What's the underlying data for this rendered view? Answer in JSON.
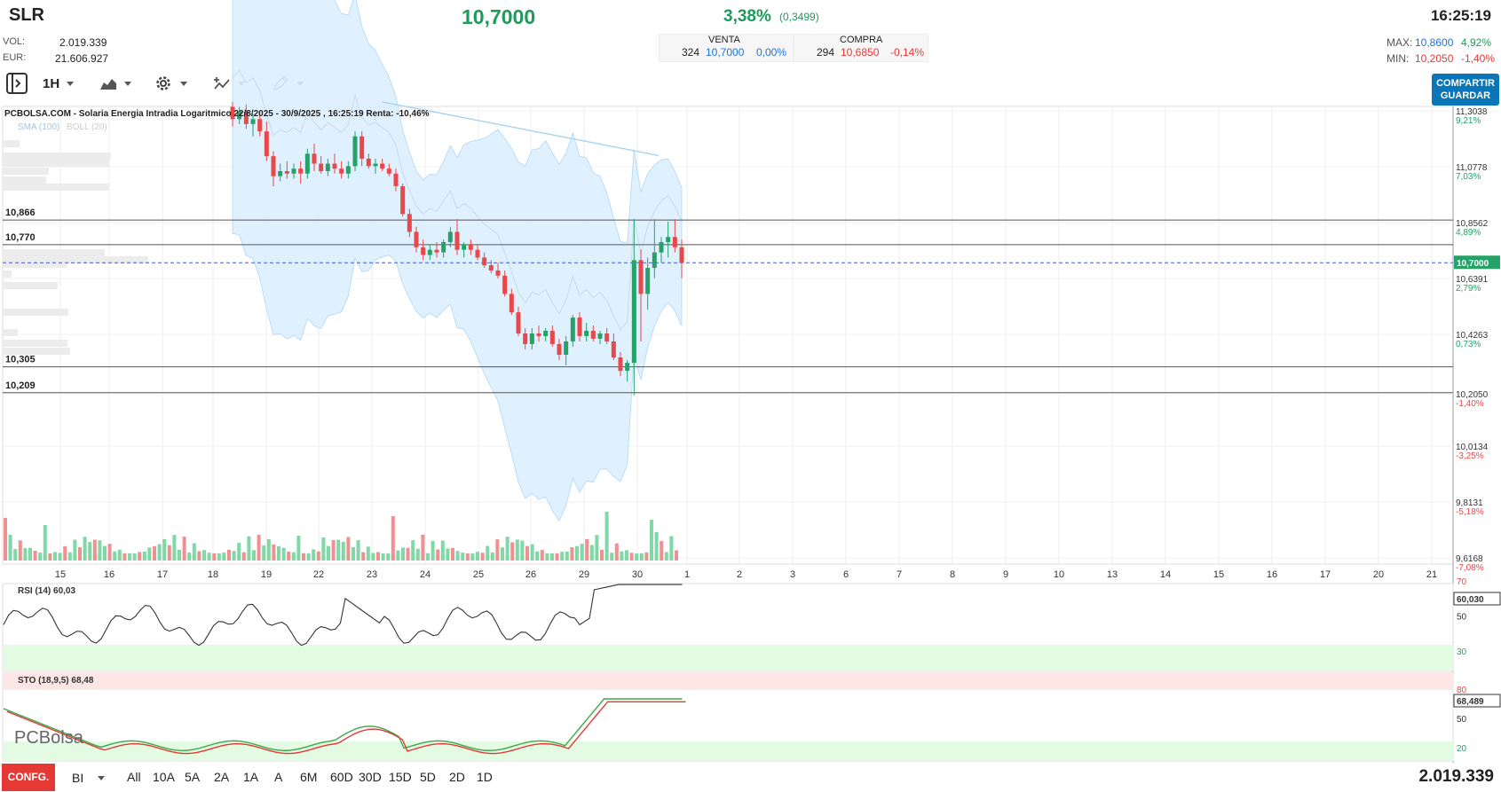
{
  "header": {
    "ticker": "SLR",
    "price": "10,7000",
    "change_pct": "3,38%",
    "change_abs": "(0,3499)",
    "time": "16:25:19",
    "vol_label": "VOL:",
    "vol_value": "2.019.339",
    "eur_label": "EUR:",
    "eur_value": "21.606.927",
    "venta_label": "VENTA",
    "venta_qty": "324",
    "venta_price": "10,7000",
    "venta_pct": "0,00%",
    "compra_label": "COMPRA",
    "compra_qty": "294",
    "compra_price": "10,6850",
    "compra_pct": "-0,14%",
    "max_label": "MAX:",
    "max_value": "10,8600",
    "max_pct": "4,92%",
    "min_label": "MIN:",
    "min_value": "10,2050",
    "min_pct": "-1,40%"
  },
  "toolbar": {
    "interval": "1H",
    "share_line1": "COMPARTIR",
    "share_line2": "GUARDAR"
  },
  "footer": {
    "config_label": "CONFG.",
    "bi_label": "BI",
    "timeframes": [
      "All",
      "10A",
      "5A",
      "2A",
      "1A",
      "A",
      "6M",
      "60D",
      "30D",
      "15D",
      "5D",
      "2D",
      "1D"
    ],
    "volume_total": "2.019.339"
  },
  "colors": {
    "up": "#26a269",
    "down": "#e8484a",
    "band": "#dcefff",
    "accent": "#0a76b7"
  },
  "chart_data": {
    "type": "candlestick",
    "title": "PCBOLSA.COM - Solaria Energia Intradia Logaritmico 22/8/2025 - 30/9/2025 , 16:25:19 Renta: -10,46%",
    "scale": "log",
    "legend": [
      "SMA (100)",
      "BOLL (20)"
    ],
    "x_ticks": [
      "15",
      "16",
      "17",
      "18",
      "19",
      "22",
      "23",
      "24",
      "25",
      "26",
      "29",
      "30",
      "1",
      "2",
      "3",
      "6",
      "7",
      "8",
      "9",
      "10",
      "13",
      "14",
      "15",
      "16",
      "17",
      "20",
      "21"
    ],
    "y_axis_labels": [
      {
        "price": "11,3038",
        "pct": "9,21%"
      },
      {
        "price": "11,0778",
        "pct": "7,03%"
      },
      {
        "price": "10,8562",
        "pct": "4,89%"
      },
      {
        "price": "10,6391",
        "pct": "2,79%"
      },
      {
        "price": "10,4263",
        "pct": "0,73%"
      },
      {
        "price": "10,2050",
        "pct": "-1,40%"
      },
      {
        "price": "10,0134",
        "pct": "-3,25%"
      },
      {
        "price": "9,8131",
        "pct": "-5,18%"
      },
      {
        "price": "9,6168",
        "pct": "-7,08%"
      }
    ],
    "current_price_label": "10,7000",
    "current_price": 10.7,
    "horizontal_levels": [
      {
        "label": "10,866",
        "value": 10.866
      },
      {
        "label": "10,770",
        "value": 10.77
      },
      {
        "label": "10,305",
        "value": 10.305
      },
      {
        "label": "10,209",
        "value": 10.209
      }
    ],
    "candles": [
      {
        "o": 11.32,
        "h": 11.34,
        "l": 11.24,
        "c": 11.27
      },
      {
        "o": 11.27,
        "h": 11.32,
        "l": 11.25,
        "c": 11.3
      },
      {
        "o": 11.3,
        "h": 11.33,
        "l": 11.23,
        "c": 11.25
      },
      {
        "o": 11.25,
        "h": 11.29,
        "l": 11.2,
        "c": 11.27
      },
      {
        "o": 11.27,
        "h": 11.3,
        "l": 11.2,
        "c": 11.22
      },
      {
        "o": 11.22,
        "h": 11.26,
        "l": 11.1,
        "c": 11.12
      },
      {
        "o": 11.12,
        "h": 11.14,
        "l": 11.0,
        "c": 11.04
      },
      {
        "o": 11.04,
        "h": 11.09,
        "l": 11.02,
        "c": 11.06
      },
      {
        "o": 11.06,
        "h": 11.1,
        "l": 11.03,
        "c": 11.05
      },
      {
        "o": 11.05,
        "h": 11.09,
        "l": 11.03,
        "c": 11.07
      },
      {
        "o": 11.07,
        "h": 11.1,
        "l": 11.01,
        "c": 11.05
      },
      {
        "o": 11.05,
        "h": 11.15,
        "l": 11.03,
        "c": 11.13
      },
      {
        "o": 11.13,
        "h": 11.17,
        "l": 11.06,
        "c": 11.09
      },
      {
        "o": 11.09,
        "h": 11.12,
        "l": 11.05,
        "c": 11.06
      },
      {
        "o": 11.06,
        "h": 11.11,
        "l": 11.04,
        "c": 11.09
      },
      {
        "o": 11.09,
        "h": 11.13,
        "l": 11.05,
        "c": 11.07
      },
      {
        "o": 11.07,
        "h": 11.1,
        "l": 11.03,
        "c": 11.05
      },
      {
        "o": 11.05,
        "h": 11.1,
        "l": 11.03,
        "c": 11.08
      },
      {
        "o": 11.08,
        "h": 11.22,
        "l": 11.06,
        "c": 11.2
      },
      {
        "o": 11.2,
        "h": 11.22,
        "l": 11.08,
        "c": 11.11
      },
      {
        "o": 11.11,
        "h": 11.13,
        "l": 11.07,
        "c": 11.08
      },
      {
        "o": 11.08,
        "h": 11.11,
        "l": 11.05,
        "c": 11.09
      },
      {
        "o": 11.09,
        "h": 11.11,
        "l": 11.06,
        "c": 11.07
      },
      {
        "o": 11.07,
        "h": 11.09,
        "l": 11.04,
        "c": 11.05
      },
      {
        "o": 11.05,
        "h": 11.07,
        "l": 10.98,
        "c": 11.0
      },
      {
        "o": 11.0,
        "h": 11.01,
        "l": 10.88,
        "c": 10.89
      },
      {
        "o": 10.89,
        "h": 10.91,
        "l": 10.8,
        "c": 10.82
      },
      {
        "o": 10.82,
        "h": 10.84,
        "l": 10.74,
        "c": 10.76
      },
      {
        "o": 10.76,
        "h": 10.79,
        "l": 10.71,
        "c": 10.73
      },
      {
        "o": 10.73,
        "h": 10.77,
        "l": 10.71,
        "c": 10.75
      },
      {
        "o": 10.75,
        "h": 10.78,
        "l": 10.72,
        "c": 10.74
      },
      {
        "o": 10.74,
        "h": 10.79,
        "l": 10.72,
        "c": 10.78
      },
      {
        "o": 10.78,
        "h": 10.84,
        "l": 10.76,
        "c": 10.82
      },
      {
        "o": 10.82,
        "h": 10.87,
        "l": 10.73,
        "c": 10.75
      },
      {
        "o": 10.75,
        "h": 10.78,
        "l": 10.72,
        "c": 10.77
      },
      {
        "o": 10.77,
        "h": 10.79,
        "l": 10.73,
        "c": 10.75
      },
      {
        "o": 10.75,
        "h": 10.77,
        "l": 10.71,
        "c": 10.72
      },
      {
        "o": 10.72,
        "h": 10.74,
        "l": 10.68,
        "c": 10.69
      },
      {
        "o": 10.69,
        "h": 10.71,
        "l": 10.66,
        "c": 10.67
      },
      {
        "o": 10.67,
        "h": 10.7,
        "l": 10.64,
        "c": 10.65
      },
      {
        "o": 10.65,
        "h": 10.67,
        "l": 10.57,
        "c": 10.58
      },
      {
        "o": 10.58,
        "h": 10.6,
        "l": 10.5,
        "c": 10.51
      },
      {
        "o": 10.51,
        "h": 10.53,
        "l": 10.42,
        "c": 10.43
      },
      {
        "o": 10.43,
        "h": 10.45,
        "l": 10.37,
        "c": 10.39
      },
      {
        "o": 10.39,
        "h": 10.45,
        "l": 10.37,
        "c": 10.43
      },
      {
        "o": 10.43,
        "h": 10.46,
        "l": 10.4,
        "c": 10.42
      },
      {
        "o": 10.42,
        "h": 10.45,
        "l": 10.4,
        "c": 10.44
      },
      {
        "o": 10.44,
        "h": 10.46,
        "l": 10.38,
        "c": 10.39
      },
      {
        "o": 10.39,
        "h": 10.41,
        "l": 10.33,
        "c": 10.35
      },
      {
        "o": 10.35,
        "h": 10.42,
        "l": 10.31,
        "c": 10.4
      },
      {
        "o": 10.4,
        "h": 10.5,
        "l": 10.38,
        "c": 10.49
      },
      {
        "o": 10.49,
        "h": 10.51,
        "l": 10.4,
        "c": 10.42
      },
      {
        "o": 10.42,
        "h": 10.47,
        "l": 10.4,
        "c": 10.44
      },
      {
        "o": 10.44,
        "h": 10.46,
        "l": 10.4,
        "c": 10.41
      },
      {
        "o": 10.41,
        "h": 10.44,
        "l": 10.39,
        "c": 10.43
      },
      {
        "o": 10.43,
        "h": 10.45,
        "l": 10.39,
        "c": 10.4
      },
      {
        "o": 10.4,
        "h": 10.43,
        "l": 10.33,
        "c": 10.34
      },
      {
        "o": 10.34,
        "h": 10.36,
        "l": 10.27,
        "c": 10.29
      },
      {
        "o": 10.29,
        "h": 10.33,
        "l": 10.25,
        "c": 10.32
      },
      {
        "o": 10.32,
        "h": 10.87,
        "l": 10.2,
        "c": 10.71
      },
      {
        "o": 10.71,
        "h": 10.75,
        "l": 10.4,
        "c": 10.58
      },
      {
        "o": 10.58,
        "h": 10.72,
        "l": 10.52,
        "c": 10.68
      },
      {
        "o": 10.68,
        "h": 10.87,
        "l": 10.64,
        "c": 10.74
      },
      {
        "o": 10.74,
        "h": 10.8,
        "l": 10.7,
        "c": 10.78
      },
      {
        "o": 10.78,
        "h": 10.86,
        "l": 10.72,
        "c": 10.8
      },
      {
        "o": 10.8,
        "h": 10.87,
        "l": 10.74,
        "c": 10.76
      },
      {
        "o": 10.76,
        "h": 10.79,
        "l": 10.64,
        "c": 10.7
      }
    ],
    "indicators": {
      "rsi": {
        "label": "RSI (14)",
        "value": "60,03",
        "axis_value": "60,030",
        "levels": [
          "70",
          "50",
          "30"
        ]
      },
      "sto": {
        "label": "STO (18,9,5)",
        "value": "68,48",
        "axis_value": "68,489",
        "levels": [
          "80",
          "50",
          "20"
        ]
      }
    },
    "watermark": "PCBolsa"
  }
}
